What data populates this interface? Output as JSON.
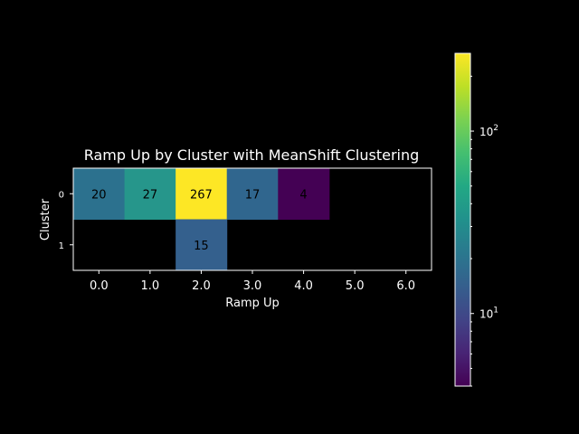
{
  "chart_data": {
    "type": "heatmap",
    "title": "Ramp Up by Cluster with MeanShift Clustering",
    "xlabel": "Ramp Up",
    "ylabel": "Cluster",
    "x_tick_labels": [
      "0.0",
      "1.0",
      "2.0",
      "3.0",
      "4.0",
      "5.0",
      "6.0"
    ],
    "y_tick_labels": [
      "0",
      "1"
    ],
    "cells": [
      {
        "row": 0,
        "col": 0,
        "value": 20,
        "color": "#2c718e"
      },
      {
        "row": 0,
        "col": 1,
        "value": 27,
        "color": "#26968b"
      },
      {
        "row": 0,
        "col": 2,
        "value": 267,
        "color": "#fde725"
      },
      {
        "row": 0,
        "col": 3,
        "value": 17,
        "color": "#30668e"
      },
      {
        "row": 0,
        "col": 4,
        "value": 4,
        "color": "#440154"
      },
      {
        "row": 1,
        "col": 2,
        "value": 15,
        "color": "#34608d"
      }
    ],
    "colorbar": {
      "scale": "log",
      "min": 4,
      "max": 267,
      "colormap": "viridis",
      "tick_labels": [
        {
          "base": "10",
          "exp": "1",
          "value": 10
        },
        {
          "base": "10",
          "exp": "2",
          "value": 100
        }
      ]
    },
    "background": "#000000",
    "empty_cell_color": "#000000",
    "grid": false
  }
}
